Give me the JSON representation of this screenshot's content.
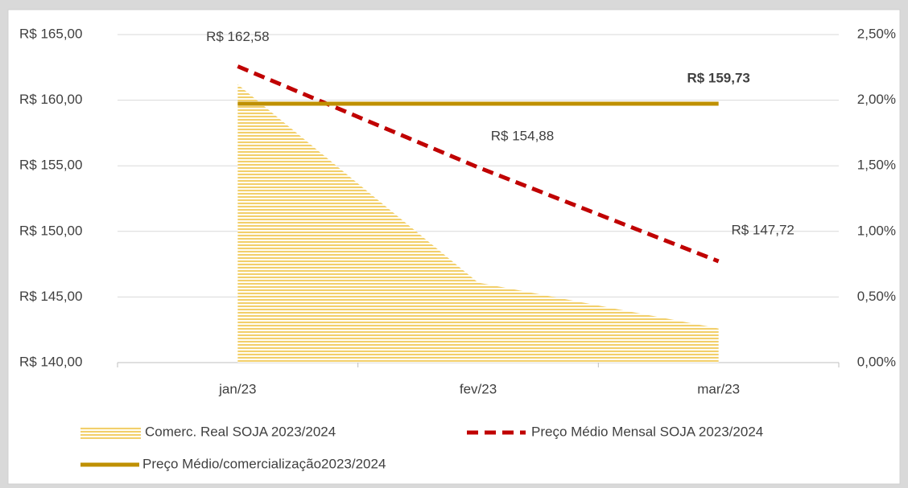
{
  "chart_data": {
    "type": "line",
    "categories": [
      "jan/23",
      "fev/23",
      "mar/23"
    ],
    "series": [
      {
        "name": "Comerc. Real SOJA 2023/2024",
        "kind": "area",
        "axis": "y2",
        "color": "#f2cf6b",
        "values": [
          2.12,
          0.61,
          0.26
        ]
      },
      {
        "name": "Preço Médio Mensal SOJA 2023/2024",
        "kind": "dashed",
        "color": "#c00000",
        "values": [
          162.58,
          154.88,
          147.72
        ],
        "value_labels": [
          "R$ 162,58",
          "R$ 154,88",
          "R$ 147,72"
        ]
      },
      {
        "name": "Preço Médio/comercialização2023/2024",
        "kind": "solid",
        "color": "#bf9000",
        "values": [
          159.73,
          159.73,
          159.73
        ],
        "value_labels": [
          null,
          null,
          "R$ 159,73"
        ]
      }
    ],
    "ylim": [
      140,
      165
    ],
    "yticks": [
      {
        "value": 140,
        "label": "R$ 140,00"
      },
      {
        "value": 145,
        "label": "R$ 145,00"
      },
      {
        "value": 150,
        "label": "R$ 150,00"
      },
      {
        "value": 155,
        "label": "R$ 155,00"
      },
      {
        "value": 160,
        "label": "R$ 160,00"
      },
      {
        "value": 165,
        "label": "R$ 165,00"
      }
    ],
    "y2lim": [
      0,
      2.5
    ],
    "y2ticks": [
      {
        "value": 0,
        "label": "0,00%"
      },
      {
        "value": 0.5,
        "label": "0,50%"
      },
      {
        "value": 1,
        "label": "1,00%"
      },
      {
        "value": 1.5,
        "label": "1,50%"
      },
      {
        "value": 2,
        "label": "2,00%"
      },
      {
        "value": 2.5,
        "label": "2,50%"
      }
    ],
    "grid": true,
    "legend": "bottom"
  }
}
